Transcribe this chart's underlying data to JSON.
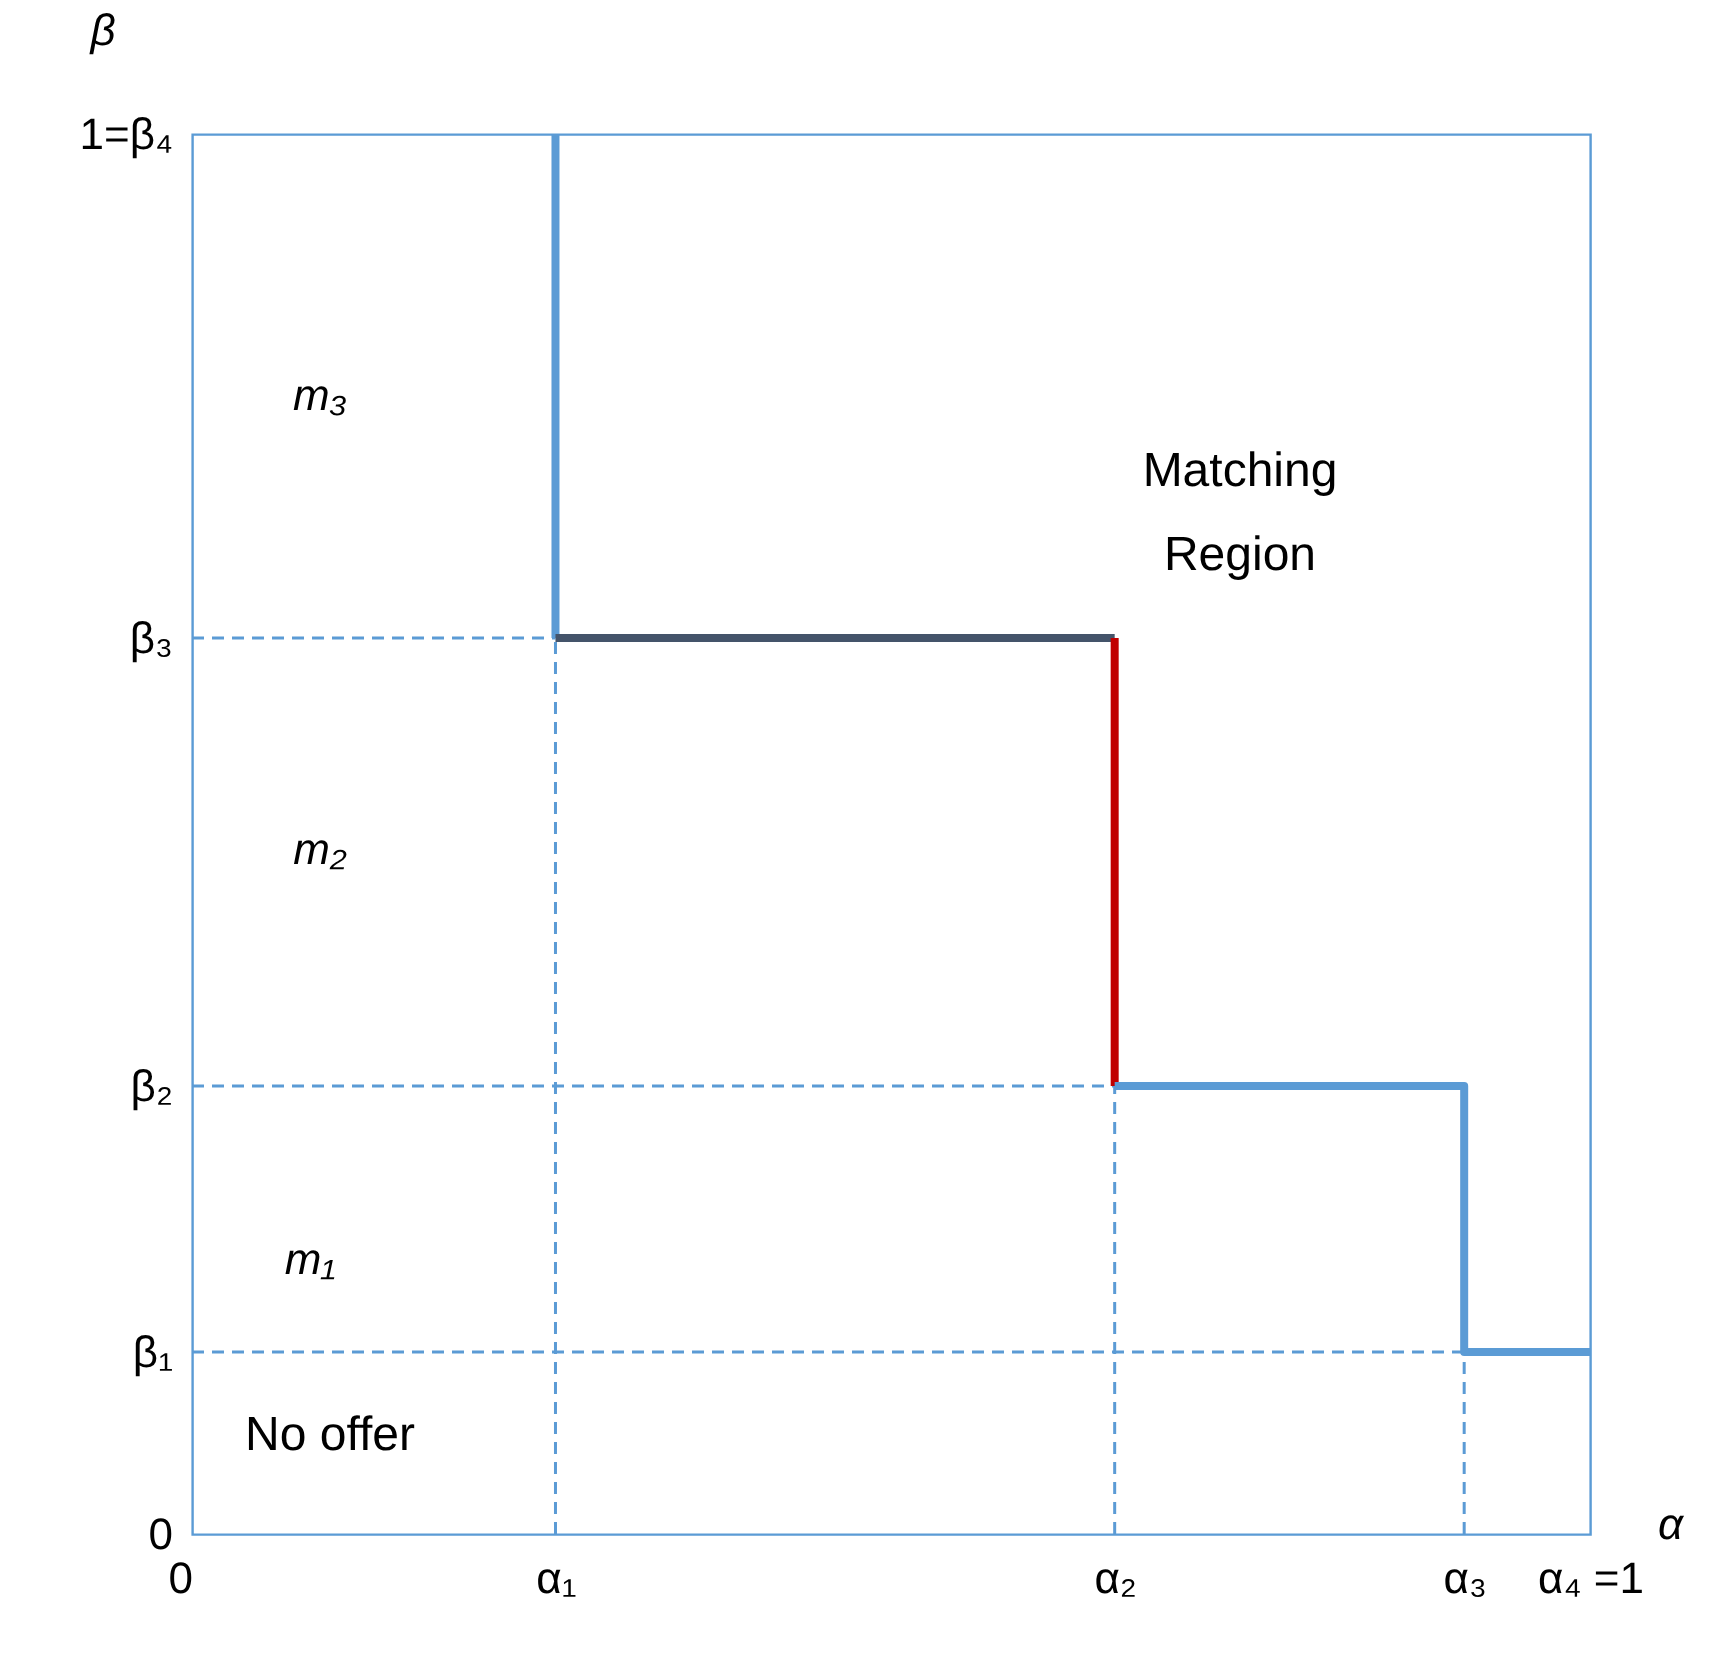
{
  "chart_data": {
    "type": "line",
    "xlabel": "α",
    "ylabel": "β",
    "xlim": [
      0,
      1
    ],
    "ylim": [
      0,
      1
    ],
    "xticks": [
      {
        "value": 0,
        "label": "0"
      },
      {
        "value": 0.26,
        "label": "α₁"
      },
      {
        "value": 0.66,
        "label": "α₂"
      },
      {
        "value": 0.91,
        "label": "α₃"
      },
      {
        "value": 1,
        "label": "α₄ =1"
      }
    ],
    "yticks": [
      {
        "value": 0,
        "label": "0"
      },
      {
        "value": 0.13,
        "label": "β₁"
      },
      {
        "value": 0.32,
        "label": "β₂"
      },
      {
        "value": 0.64,
        "label": "β₃"
      },
      {
        "value": 1,
        "label": "1=β₄"
      }
    ],
    "grid": false,
    "marker": "none",
    "series": [
      {
        "color": "#5b9bd5",
        "x": [
          0.26,
          0.26
        ],
        "values": [
          1,
          0.64
        ]
      },
      {
        "color": "#44546a",
        "x": [
          0.26,
          0.66
        ],
        "values": [
          0.64,
          0.64
        ]
      },
      {
        "color": "#c00000",
        "x": [
          0.66,
          0.66
        ],
        "values": [
          0.64,
          0.32
        ]
      },
      {
        "color": "#5b9bd5",
        "x": [
          0.66,
          0.91,
          0.91,
          1
        ],
        "values": [
          0.32,
          0.32,
          0.13,
          0.13
        ]
      },
      {
        "color": "#5b9bd5",
        "line_style": "dashed",
        "x": [
          0,
          0.26
        ],
        "values": [
          0.64,
          0.64
        ]
      },
      {
        "color": "#5b9bd5",
        "line_style": "dashed",
        "x": [
          0,
          0.66
        ],
        "values": [
          0.32,
          0.32
        ]
      },
      {
        "color": "#5b9bd5",
        "line_style": "dashed",
        "x": [
          0,
          0.91
        ],
        "values": [
          0.13,
          0.13
        ]
      },
      {
        "color": "#5b9bd5",
        "line_style": "dashed",
        "x": [
          0.26,
          0.26
        ],
        "values": [
          0,
          0.64
        ]
      },
      {
        "color": "#5b9bd5",
        "line_style": "dashed",
        "x": [
          0.66,
          0.66
        ],
        "values": [
          0,
          0.32
        ]
      },
      {
        "color": "#5b9bd5",
        "line_style": "dashed",
        "x": [
          0.91,
          0.91
        ],
        "values": [
          0,
          0.13
        ]
      }
    ],
    "annotations": [
      "m₃",
      "m₂",
      "m₁",
      "No offer",
      "Matching\nRegion"
    ]
  }
}
